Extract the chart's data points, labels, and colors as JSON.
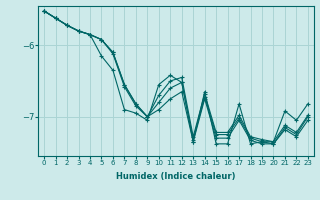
{
  "xlabel": "Humidex (Indice chaleur)",
  "bg_color": "#cdeaea",
  "grid_color": "#aad4d4",
  "line_color": "#006666",
  "xlim": [
    -0.5,
    23.5
  ],
  "ylim": [
    -7.55,
    -5.45
  ],
  "yticks": [
    -7,
    -6
  ],
  "xticks": [
    0,
    1,
    2,
    3,
    4,
    5,
    6,
    7,
    8,
    9,
    10,
    11,
    12,
    13,
    14,
    15,
    16,
    17,
    18,
    19,
    20,
    21,
    22,
    23
  ],
  "series": [
    [
      -5.52,
      -5.62,
      -5.72,
      -5.8,
      -5.85,
      -6.15,
      -6.35,
      -6.9,
      -6.95,
      -7.05,
      -6.55,
      -6.42,
      -6.52,
      -7.35,
      -6.65,
      -7.38,
      -7.38,
      -6.82,
      -7.38,
      -7.35,
      -7.35,
      -6.92,
      -7.05,
      -6.82
    ],
    [
      -5.52,
      -5.62,
      -5.72,
      -5.8,
      -5.85,
      -5.92,
      -6.1,
      -6.55,
      -6.82,
      -7.0,
      -6.7,
      -6.5,
      -6.45,
      -7.28,
      -6.68,
      -7.22,
      -7.22,
      -6.98,
      -7.28,
      -7.32,
      -7.35,
      -7.12,
      -7.22,
      -6.98
    ],
    [
      -5.52,
      -5.62,
      -5.72,
      -5.8,
      -5.85,
      -5.92,
      -6.1,
      -6.55,
      -6.82,
      -7.0,
      -6.9,
      -6.75,
      -6.65,
      -7.35,
      -6.75,
      -7.3,
      -7.3,
      -7.05,
      -7.33,
      -7.38,
      -7.38,
      -7.18,
      -7.28,
      -7.05
    ],
    [
      -5.52,
      -5.62,
      -5.72,
      -5.8,
      -5.85,
      -5.92,
      -6.12,
      -6.58,
      -6.85,
      -7.0,
      -6.8,
      -6.6,
      -6.52,
      -7.32,
      -6.72,
      -7.25,
      -7.25,
      -7.02,
      -7.3,
      -7.35,
      -7.38,
      -7.15,
      -7.25,
      -7.0
    ]
  ]
}
